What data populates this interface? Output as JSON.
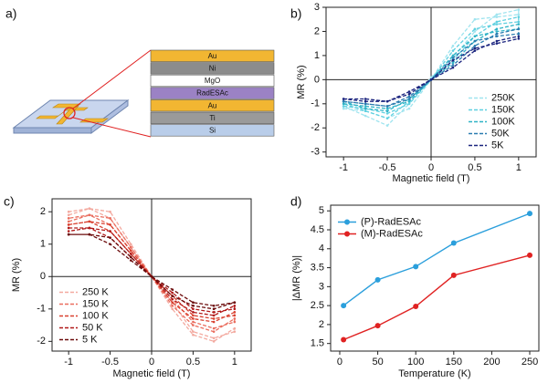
{
  "diagram": {
    "panel_label": "a)",
    "layers": [
      {
        "name": "Au",
        "color": "#f2b632"
      },
      {
        "name": "Ni",
        "color": "#8c8c8c"
      },
      {
        "name": "MgO",
        "color": "#ffffff"
      },
      {
        "name": "RadESAc",
        "color": "#9b82c4"
      },
      {
        "name": "Au",
        "color": "#f2b632"
      },
      {
        "name": "Ti",
        "color": "#9a9a9a"
      },
      {
        "name": "Si",
        "color": "#b9cde9"
      }
    ]
  },
  "chart_data": [
    {
      "type": "line",
      "panel_label": "b)",
      "xlabel": "Magnetic field (T)",
      "ylabel": "MR (%)",
      "xlim": [
        -1.2,
        1.2
      ],
      "ylim": [
        -3.2,
        3
      ],
      "xticks": [
        -1,
        -0.5,
        0,
        0.5,
        1
      ],
      "yticks": [
        -3,
        -2,
        -1,
        0,
        1,
        2,
        3
      ],
      "zero_lines": true,
      "dashed": true,
      "markers": true,
      "legend": "lower right",
      "x": [
        -1,
        -0.75,
        -0.5,
        -0.25,
        0,
        0.25,
        0.5,
        0.75,
        1,
        1,
        0.75,
        0.5,
        0.25,
        0,
        -0.25,
        -0.5,
        -0.75,
        -1
      ],
      "series": [
        {
          "name": "250K",
          "color": "#9fe4ef",
          "values": [
            -1.2,
            -1.3,
            -1.6,
            -1.2,
            0,
            1.4,
            2.5,
            2.6,
            2.7,
            2.9,
            2.7,
            2.0,
            0.9,
            0.1,
            -1.0,
            -1.9,
            -1.5,
            -1.1
          ]
        },
        {
          "name": "150K",
          "color": "#5fd0e0",
          "values": [
            -1.1,
            -1.2,
            -1.4,
            -1.0,
            0,
            1.2,
            2.1,
            2.3,
            2.4,
            2.6,
            2.4,
            1.8,
            0.8,
            0,
            -0.9,
            -1.6,
            -1.3,
            -1.0
          ]
        },
        {
          "name": "100K",
          "color": "#2fb3c6",
          "values": [
            -1.0,
            -1.1,
            -1.2,
            -0.9,
            0,
            1.0,
            1.8,
            2.0,
            2.1,
            2.3,
            2.1,
            1.6,
            0.7,
            0,
            -0.8,
            -1.3,
            -1.2,
            -0.9
          ]
        },
        {
          "name": "50K",
          "color": "#2a7cb0",
          "values": [
            -0.9,
            -1.0,
            -1.1,
            -0.8,
            0,
            0.9,
            1.6,
            1.8,
            1.9,
            2.1,
            1.9,
            1.4,
            0.6,
            0,
            -0.7,
            -1.1,
            -1.0,
            -0.9
          ]
        },
        {
          "name": "5K",
          "color": "#1a237e",
          "values": [
            -0.8,
            -0.8,
            -0.9,
            -0.6,
            0,
            0.8,
            1.3,
            1.5,
            1.7,
            1.8,
            1.6,
            1.2,
            0.5,
            0,
            -0.5,
            -0.9,
            -0.9,
            -0.8
          ]
        }
      ]
    },
    {
      "type": "line",
      "panel_label": "c)",
      "xlabel": "Magnetic field (T)",
      "ylabel": "MR (%)",
      "xlim": [
        -1.2,
        1.2
      ],
      "ylim": [
        -2.3,
        2.4
      ],
      "xticks": [
        -1,
        -0.5,
        0,
        0.5,
        1
      ],
      "yticks": [
        -2,
        -1,
        0,
        1,
        2
      ],
      "zero_lines": true,
      "dashed": true,
      "markers": true,
      "legend": "lower left",
      "x": [
        -1,
        -0.75,
        -0.5,
        -0.25,
        0,
        0.25,
        0.5,
        0.75,
        1,
        1,
        0.75,
        0.5,
        0.25,
        0,
        -0.25,
        -0.5,
        -0.75,
        -1
      ],
      "series": [
        {
          "name": "250 K",
          "color": "#f3a99f",
          "values": [
            1.9,
            2.1,
            2.0,
            1.0,
            0,
            -1.0,
            -1.8,
            -2.0,
            -1.6,
            -1.7,
            -1.9,
            -1.7,
            -0.8,
            0,
            0.9,
            1.8,
            2.1,
            2.0
          ]
        },
        {
          "name": "150 K",
          "color": "#ea6d5e",
          "values": [
            1.7,
            1.9,
            1.8,
            0.9,
            0,
            -0.9,
            -1.5,
            -1.7,
            -1.3,
            -1.4,
            -1.6,
            -1.4,
            -0.7,
            0,
            0.8,
            1.6,
            1.9,
            1.8
          ]
        },
        {
          "name": "100 K",
          "color": "#d9402f",
          "values": [
            1.6,
            1.7,
            1.6,
            0.8,
            0,
            -0.8,
            -1.3,
            -1.4,
            -1.1,
            -1.2,
            -1.3,
            -1.2,
            -0.6,
            0,
            0.7,
            1.4,
            1.7,
            1.6
          ]
        },
        {
          "name": "50 K",
          "color": "#b01818",
          "values": [
            1.5,
            1.5,
            1.4,
            0.7,
            0,
            -0.7,
            -1.1,
            -1.2,
            -0.9,
            -1.0,
            -1.1,
            -1.0,
            -0.5,
            0,
            0.6,
            1.2,
            1.5,
            1.4
          ]
        },
        {
          "name": "5 K",
          "color": "#6b0a0a",
          "values": [
            1.3,
            1.3,
            1.2,
            0.6,
            0,
            -0.6,
            -0.9,
            -1.0,
            -0.8,
            -0.8,
            -0.9,
            -0.8,
            -0.4,
            0,
            0.5,
            1.0,
            1.3,
            1.3
          ]
        }
      ]
    },
    {
      "type": "line",
      "panel_label": "d)",
      "xlabel": "Temperature (K)",
      "ylabel": "|ΔMR (%)|",
      "xlim": [
        -12,
        262
      ],
      "ylim": [
        1.3,
        5.15
      ],
      "xticks": [
        0,
        50,
        100,
        150,
        200,
        250
      ],
      "yticks": [
        1.5,
        2,
        2.5,
        3,
        3.5,
        4,
        4.5,
        5
      ],
      "zero_lines": false,
      "dashed": false,
      "markers": true,
      "legend": "upper left",
      "x": [
        5,
        50,
        100,
        150,
        250
      ],
      "series": [
        {
          "name": "(P)-RadESAc",
          "color": "#2b9fdc",
          "values": [
            2.5,
            3.18,
            3.53,
            4.15,
            4.93
          ]
        },
        {
          "name": "(M)-RadESAc",
          "color": "#e02222",
          "values": [
            1.6,
            1.97,
            2.48,
            3.3,
            3.83
          ]
        }
      ]
    }
  ]
}
